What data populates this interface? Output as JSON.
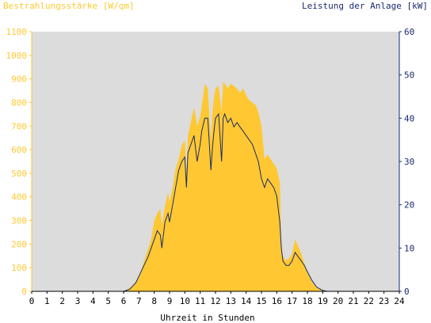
{
  "chart_data": {
    "type": "area",
    "left_axis_title": "Bestrahlungsstärke [W/qm]",
    "right_axis_title": "Leistung der Anlage [kW]",
    "xlabel": "Uhrzeit in Stunden",
    "xlim": [
      0,
      24
    ],
    "ylim_left": [
      0,
      1100
    ],
    "ylim_right": [
      0,
      60
    ],
    "x_ticks": [
      "0",
      "1",
      "2",
      "3",
      "4",
      "5",
      "6",
      "7",
      "8",
      "9",
      "10",
      "11",
      "12",
      "13",
      "14",
      "15",
      "16",
      "17",
      "18",
      "19",
      "20",
      "21",
      "22",
      "23",
      "24"
    ],
    "y_left_ticks": [
      "0",
      "100",
      "200",
      "300",
      "400",
      "500",
      "600",
      "700",
      "800",
      "900",
      "1000",
      "1100"
    ],
    "y_right_ticks": [
      "0",
      "10",
      "20",
      "30",
      "40",
      "50",
      "60"
    ],
    "colors": {
      "irradiance_fill": "#ffc832",
      "power_line": "#1a2a6c",
      "plot_background": "#dcdcdc",
      "left_axis_text": "#ffc832",
      "right_axis_text": "#1a2a6c"
    },
    "grid": false,
    "series": [
      {
        "name": "Bestrahlungsstärke [W/qm]",
        "axis": "left",
        "type": "area",
        "x": [
          0,
          6.0,
          6.3,
          6.6,
          7.0,
          7.4,
          7.8,
          8.0,
          8.2,
          8.4,
          8.5,
          8.7,
          8.9,
          9.0,
          9.2,
          9.4,
          9.6,
          9.8,
          10.0,
          10.1,
          10.2,
          10.4,
          10.6,
          10.8,
          11.0,
          11.2,
          11.3,
          11.5,
          11.7,
          11.8,
          11.9,
          12.0,
          12.2,
          12.4,
          12.5,
          12.6,
          12.8,
          13.0,
          13.2,
          13.4,
          13.6,
          13.8,
          14.0,
          14.2,
          14.4,
          14.6,
          14.8,
          15.0,
          15.2,
          15.4,
          15.6,
          15.8,
          16.0,
          16.2,
          16.3,
          16.4,
          16.6,
          16.8,
          17.0,
          17.2,
          17.4,
          17.6,
          17.8,
          18.0,
          18.3,
          18.6,
          19.0,
          19.3,
          24
        ],
        "y": [
          0,
          0,
          10,
          25,
          60,
          140,
          220,
          300,
          330,
          350,
          280,
          360,
          420,
          380,
          440,
          520,
          560,
          620,
          640,
          500,
          660,
          720,
          780,
          700,
          740,
          830,
          880,
          860,
          640,
          760,
          820,
          860,
          870,
          760,
          890,
          880,
          860,
          880,
          870,
          860,
          840,
          860,
          830,
          810,
          800,
          790,
          760,
          700,
          560,
          580,
          560,
          540,
          520,
          460,
          200,
          150,
          130,
          140,
          160,
          220,
          190,
          160,
          120,
          80,
          40,
          15,
          3,
          0,
          0
        ]
      },
      {
        "name": "Leistung der Anlage [kW]",
        "axis": "right",
        "type": "line",
        "x": [
          0,
          6.0,
          6.4,
          6.8,
          7.2,
          7.6,
          8.0,
          8.2,
          8.4,
          8.5,
          8.7,
          8.9,
          9.0,
          9.2,
          9.4,
          9.6,
          9.8,
          10.0,
          10.1,
          10.2,
          10.4,
          10.6,
          10.8,
          11.0,
          11.1,
          11.3,
          11.5,
          11.7,
          11.8,
          11.9,
          12.0,
          12.2,
          12.4,
          12.5,
          12.6,
          12.8,
          13.0,
          13.2,
          13.4,
          13.6,
          13.8,
          14.0,
          14.2,
          14.4,
          14.6,
          14.8,
          15.0,
          15.2,
          15.4,
          15.6,
          15.8,
          16.0,
          16.2,
          16.3,
          16.4,
          16.6,
          16.8,
          17.0,
          17.2,
          17.4,
          17.6,
          17.8,
          18.0,
          18.3,
          18.6,
          19.0,
          19.3,
          24
        ],
        "y": [
          0,
          0,
          0.5,
          2,
          5,
          8,
          12,
          14,
          13,
          10,
          16,
          18,
          16,
          20,
          24,
          28,
          30,
          31,
          24,
          32,
          34,
          36,
          30,
          34,
          37,
          40,
          40,
          28,
          33,
          37,
          40,
          41,
          30,
          40,
          41,
          39,
          40,
          38,
          39,
          38,
          37,
          36,
          35,
          34,
          32,
          30,
          26,
          24,
          26,
          25,
          24,
          22,
          16,
          10,
          7,
          6,
          6,
          7,
          9,
          8,
          7,
          6,
          4.5,
          2.5,
          1,
          0.2,
          0,
          0
        ]
      }
    ]
  }
}
